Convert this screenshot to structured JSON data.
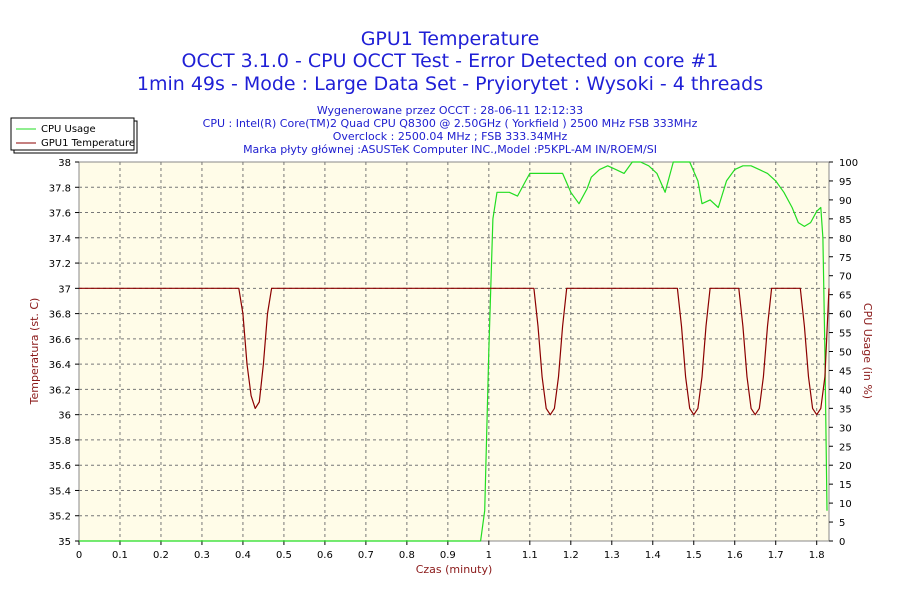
{
  "chart_data": {
    "type": "line",
    "title": "GPU1 Temperature",
    "subtitle_lines": [
      "OCCT 3.1.0 - CPU OCCT Test - Error Detected on core #1",
      "1min 49s - Mode : Large Data Set - Pryiorytet : Wysoki - 4 threads"
    ],
    "info_lines": [
      "Wygenerowane przez OCCT : 28-06-11 12:12:33",
      "CPU : Intel(R) Core(TM)2 Quad CPU Q8300 @ 2.50GHz ( Yorkfield ) 2500 MHz FSB 333MHz",
      "Overclock : 2500.04 MHz ; FSB 333.34MHz",
      "Marka płyty głównej :ASUSTeK Computer INC.,Model :P5KPL-AM IN/ROEM/SI"
    ],
    "xlabel": "Czas (minuty)",
    "ylabel_left": "Temperatura (st. C)",
    "ylabel_right": "CPU Usage (in %)",
    "xlim": [
      0,
      1.83
    ],
    "ylim_left": [
      35,
      38
    ],
    "ylim_right": [
      0,
      100
    ],
    "x_ticks": [
      "0",
      "0.1",
      "0.2",
      "0.3",
      "0.4",
      "0.5",
      "0.6",
      "0.7",
      "0.8",
      "0.9",
      "1",
      "1.1",
      "1.2",
      "1.3",
      "1.4",
      "1.5",
      "1.6",
      "1.7",
      "1.8"
    ],
    "y_left_ticks": [
      "35",
      "35.2",
      "35.4",
      "35.6",
      "35.8",
      "36",
      "36.2",
      "36.4",
      "36.6",
      "36.8",
      "37",
      "37.2",
      "37.4",
      "37.6",
      "37.8",
      "38"
    ],
    "y_right_ticks": [
      "0",
      "5",
      "10",
      "15",
      "20",
      "25",
      "30",
      "35",
      "40",
      "45",
      "50",
      "55",
      "60",
      "65",
      "70",
      "75",
      "80",
      "85",
      "90",
      "95",
      "100"
    ],
    "grid": true,
    "legend_position": "top-left",
    "series": [
      {
        "name": "CPU Usage",
        "axis": "right",
        "color": "#22dd22",
        "x": [
          0,
          0.98,
          0.99,
          1.0,
          1.01,
          1.02,
          1.03,
          1.05,
          1.07,
          1.08,
          1.09,
          1.1,
          1.12,
          1.14,
          1.16,
          1.18,
          1.2,
          1.22,
          1.24,
          1.25,
          1.27,
          1.29,
          1.31,
          1.33,
          1.35,
          1.37,
          1.39,
          1.41,
          1.43,
          1.45,
          1.47,
          1.49,
          1.51,
          1.52,
          1.54,
          1.56,
          1.58,
          1.6,
          1.62,
          1.64,
          1.66,
          1.68,
          1.7,
          1.72,
          1.74,
          1.755,
          1.77,
          1.785,
          1.8,
          1.81,
          1.815,
          1.82,
          1.825
        ],
        "values": [
          0,
          0,
          8,
          50,
          85,
          92,
          92,
          92,
          91,
          93,
          95,
          97,
          97,
          97,
          97,
          97,
          92,
          89,
          93,
          96,
          98,
          99,
          98,
          97,
          100,
          100,
          99,
          97,
          92,
          100,
          100,
          100,
          95,
          89,
          90,
          88,
          95,
          98,
          99,
          99,
          98,
          97,
          95,
          92,
          88,
          84,
          83,
          84,
          87,
          88,
          80,
          50,
          8
        ]
      },
      {
        "name": "GPU1 Temperature",
        "axis": "left",
        "color": "#8b0000",
        "x": [
          0,
          0.39,
          0.4,
          0.41,
          0.42,
          0.43,
          0.44,
          0.45,
          0.46,
          0.47,
          0.48,
          1.11,
          1.12,
          1.13,
          1.14,
          1.15,
          1.16,
          1.17,
          1.18,
          1.19,
          1.2,
          1.46,
          1.47,
          1.48,
          1.49,
          1.5,
          1.51,
          1.52,
          1.53,
          1.54,
          1.61,
          1.62,
          1.63,
          1.64,
          1.65,
          1.66,
          1.67,
          1.68,
          1.69,
          1.76,
          1.77,
          1.78,
          1.79,
          1.8,
          1.81,
          1.82,
          1.83
        ],
        "values": [
          37,
          37,
          36.8,
          36.4,
          36.15,
          36.05,
          36.1,
          36.4,
          36.8,
          37,
          37,
          37,
          36.7,
          36.3,
          36.05,
          36,
          36.05,
          36.3,
          36.7,
          37,
          37,
          37,
          36.7,
          36.3,
          36.05,
          36,
          36.05,
          36.3,
          36.7,
          37,
          37,
          36.7,
          36.3,
          36.05,
          36,
          36.05,
          36.3,
          36.7,
          37,
          37,
          36.7,
          36.3,
          36.05,
          36,
          36.05,
          36.3,
          37
        ]
      }
    ]
  }
}
